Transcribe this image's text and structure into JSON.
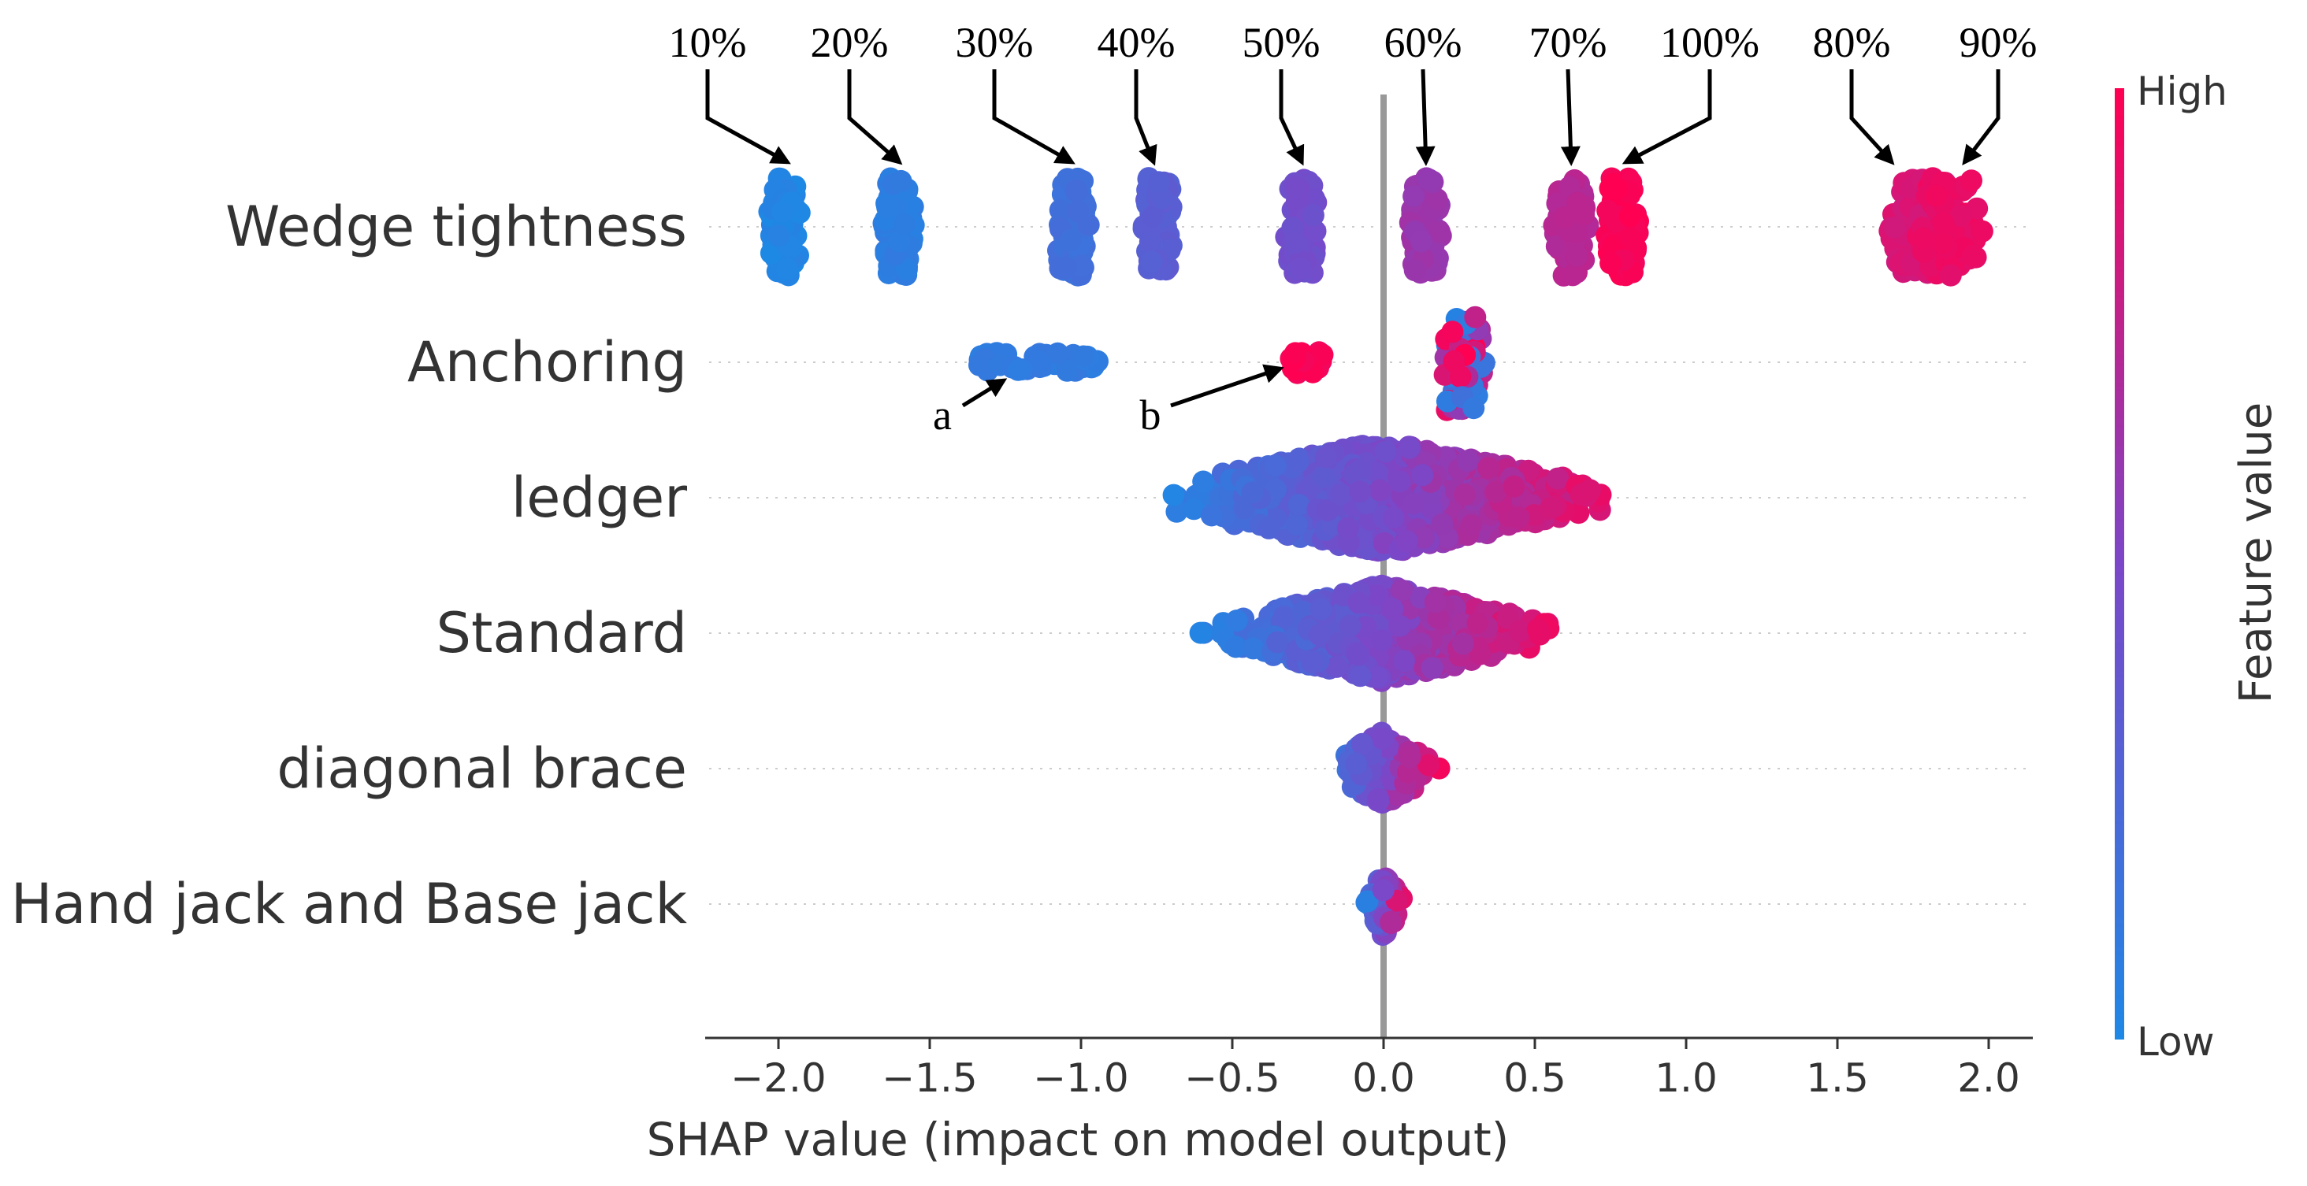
{
  "chart_data": {
    "type": "scatter",
    "subtype": "shap-beeswarm",
    "xlabel": "SHAP value (impact on model output)",
    "xlim": [
      -2.25,
      2.1
    ],
    "xticks": [
      -2.0,
      -1.5,
      -1.0,
      -0.5,
      0.0,
      0.5,
      1.0,
      1.5,
      2.0
    ],
    "xtick_labels": [
      "−2.0",
      "−1.5",
      "−1.0",
      "−0.5",
      "0.0",
      "0.5",
      "1.0",
      "1.5",
      "2.0"
    ],
    "features": [
      {
        "name": "Wedge tightness",
        "kind": "clusters",
        "clusters": [
          {
            "label": "10%",
            "center": -1.98,
            "feature_value": 0.02,
            "annotation_tip_x": -1.97
          },
          {
            "label": "20%",
            "center": -1.6,
            "feature_value": 0.08,
            "annotation_tip_x": -1.6
          },
          {
            "label": "30%",
            "center": -1.03,
            "feature_value": 0.18,
            "annotation_tip_x": -1.03
          },
          {
            "label": "40%",
            "center": -0.74,
            "feature_value": 0.32,
            "annotation_tip_x": -0.76
          },
          {
            "label": "50%",
            "center": -0.27,
            "feature_value": 0.45,
            "annotation_tip_x": -0.27
          },
          {
            "label": "60%",
            "center": 0.14,
            "feature_value": 0.62,
            "annotation_tip_x": 0.14
          },
          {
            "label": "70%",
            "center": 0.62,
            "feature_value": 0.72,
            "annotation_tip_x": 0.62
          },
          {
            "label": "100%",
            "center": 0.79,
            "feature_value": 0.98,
            "annotation_tip_x": 0.8
          },
          {
            "label": "80%",
            "center": 1.78,
            "feature_value": 0.85,
            "annotation_tip_x": 1.68
          },
          {
            "label": "90%",
            "center": 1.87,
            "feature_value": 0.92,
            "annotation_tip_x": 1.92
          }
        ]
      },
      {
        "name": "Anchoring",
        "kind": "clusters",
        "clusters": [
          {
            "label": "a",
            "center": -1.15,
            "feature_value": 0.1,
            "annotation_tip_x": -1.25
          },
          {
            "label": "b",
            "center": -0.25,
            "feature_value": 0.98,
            "annotation_tip_x": -0.3
          },
          {
            "label": "",
            "center": 0.26,
            "feature_value": 0.55,
            "annotation_tip_x": null
          }
        ]
      },
      {
        "name": "ledger",
        "kind": "spread",
        "min": -0.82,
        "max": 0.88,
        "center": 0.0
      },
      {
        "name": "Standard",
        "kind": "spread",
        "min": -0.65,
        "max": 0.66,
        "center": 0.0
      },
      {
        "name": "diagonal brace",
        "kind": "spread",
        "min": -0.2,
        "max": 0.2,
        "center": 0.0
      },
      {
        "name": "Hand jack and Base jack",
        "kind": "spread",
        "min": -0.07,
        "max": 0.07,
        "center": 0.0
      }
    ],
    "colorbar": {
      "title": "Feature value",
      "high_label": "High",
      "low_label": "Low",
      "low_color": "#1e88e5",
      "mid_color": "#7b47c8",
      "high_color": "#ff0052"
    }
  }
}
